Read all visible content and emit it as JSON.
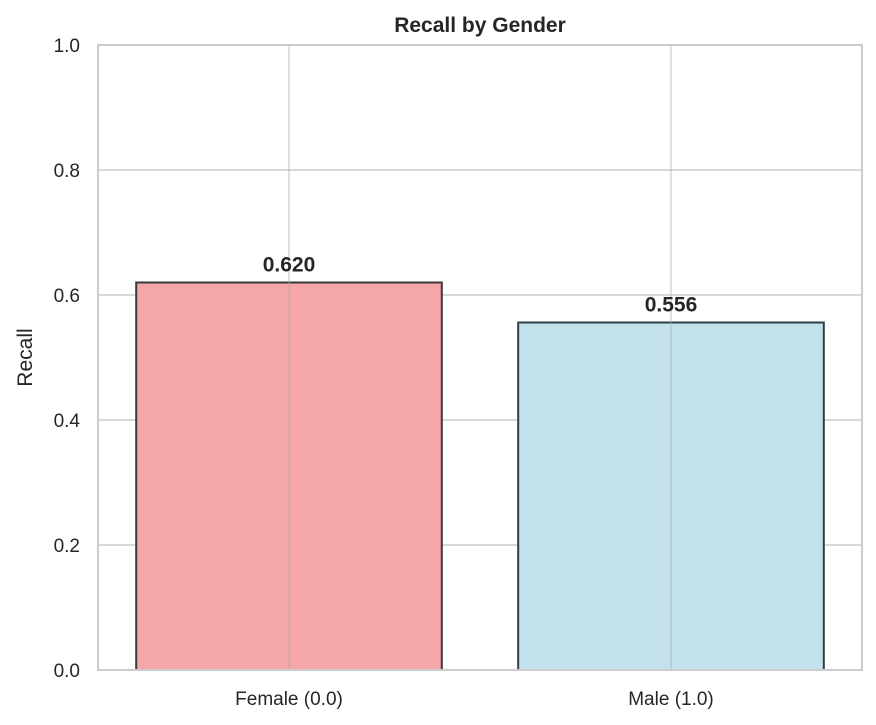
{
  "chart_data": {
    "type": "bar",
    "title": "Recall by Gender",
    "xlabel": "",
    "ylabel": "Recall",
    "ylim": [
      0,
      1.0
    ],
    "yticks": [
      "0.0",
      "0.2",
      "0.4",
      "0.6",
      "0.8",
      "1.0"
    ],
    "categories": [
      "Female (0.0)",
      "Male (1.0)"
    ],
    "values": [
      0.62,
      0.556
    ],
    "value_labels": [
      "0.620",
      "0.556"
    ],
    "bar_colors": [
      "#f4a6a8",
      "#c4e2ec"
    ],
    "edge_colors": [
      "#3a3a3a",
      "#2e3f4a"
    ],
    "grid": true,
    "legend": false
  }
}
